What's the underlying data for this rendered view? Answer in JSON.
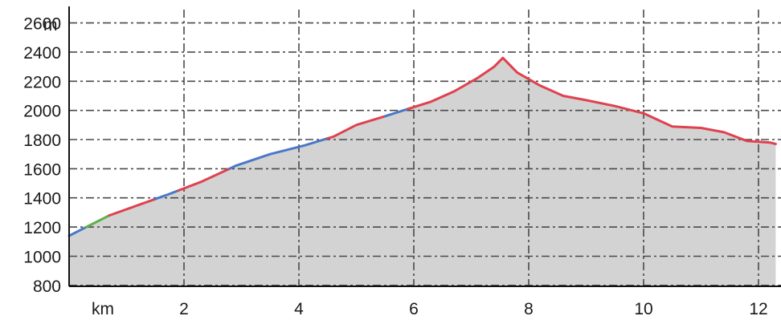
{
  "chart_data": {
    "type": "area",
    "title": "",
    "xlabel": "km",
    "ylabel": "m",
    "xlim": [
      0,
      12.3
    ],
    "ylim": [
      700,
      2700
    ],
    "x_ticks": [
      2,
      4,
      6,
      8,
      10,
      12
    ],
    "y_ticks": [
      800,
      1000,
      1200,
      1400,
      1600,
      1800,
      2000,
      2200,
      2400,
      2600
    ],
    "grid": true,
    "legend": "none",
    "fill_color": "#d3d3d3",
    "series": [
      {
        "x": [
          0.0,
          0.3,
          0.7,
          1.2,
          1.7,
          2.3,
          2.9,
          3.5,
          4.1,
          4.6,
          5.0,
          5.5,
          5.9,
          6.3,
          6.7,
          7.1,
          7.4,
          7.55,
          7.8,
          8.2,
          8.6,
          9.0,
          9.5,
          10.0,
          10.5,
          11.0,
          11.4,
          11.8,
          12.2,
          12.3
        ],
        "values": [
          1140,
          1200,
          1280,
          1350,
          1420,
          1510,
          1620,
          1700,
          1760,
          1820,
          1900,
          1960,
          2010,
          2060,
          2130,
          2220,
          2300,
          2360,
          2260,
          2170,
          2100,
          2070,
          2030,
          1980,
          1890,
          1880,
          1850,
          1790,
          1780,
          1770
        ]
      }
    ],
    "segments": [
      {
        "from": 0.0,
        "to": 0.3,
        "color": "#4a78c8"
      },
      {
        "from": 0.3,
        "to": 0.7,
        "color": "#5fb04a"
      },
      {
        "from": 0.7,
        "to": 1.5,
        "color": "#e0414e"
      },
      {
        "from": 1.5,
        "to": 1.9,
        "color": "#4a78c8"
      },
      {
        "from": 1.9,
        "to": 2.8,
        "color": "#e0414e"
      },
      {
        "from": 2.8,
        "to": 4.5,
        "color": "#4a78c8"
      },
      {
        "from": 4.5,
        "to": 5.5,
        "color": "#e0414e"
      },
      {
        "from": 5.5,
        "to": 5.9,
        "color": "#4a78c8"
      },
      {
        "from": 5.9,
        "to": 12.3,
        "color": "#e0414e"
      }
    ]
  }
}
